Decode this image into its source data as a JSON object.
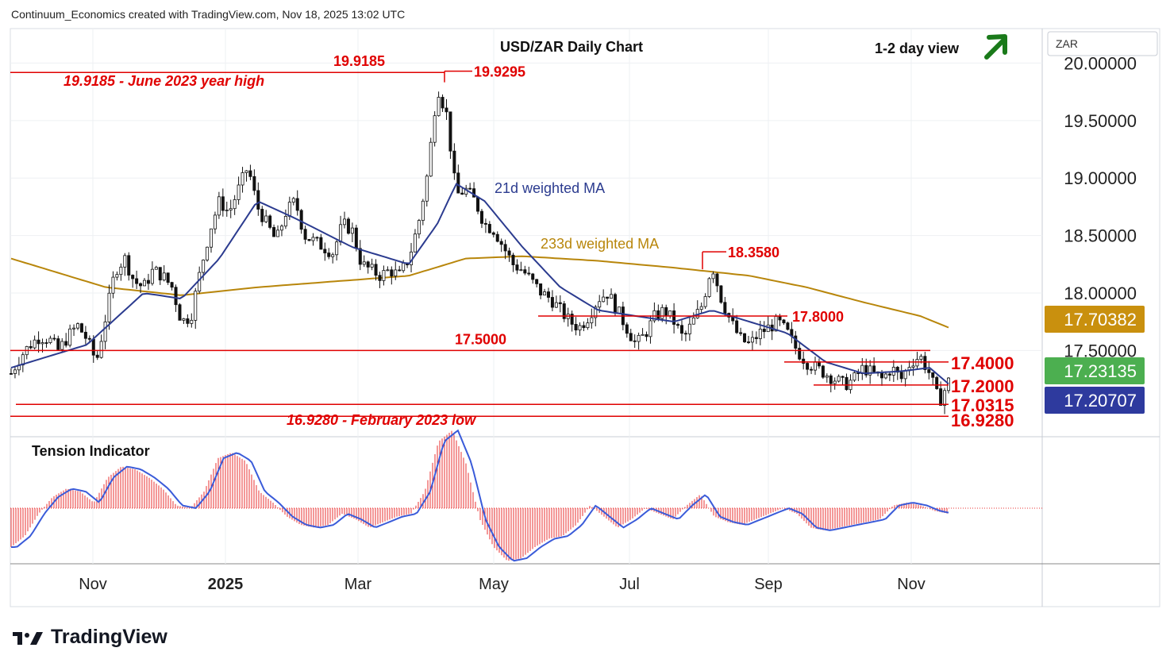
{
  "header": "Continuum_Economics created with TradingView.com, Nov 18, 2025 13:02 UTC",
  "brand": "TradingView",
  "colors": {
    "red": "#e00000",
    "ma21": "#2b3b8f",
    "ma233": "#b8860b",
    "candle": "#111111",
    "tension_red": "#e83030",
    "tension_blue": "#3a5bd9",
    "badge_ma233": "#c9900e",
    "badge_green": "#4caf50",
    "badge_blue": "#2e3a9e",
    "arrow": "#1a7a1a"
  },
  "chart_data": [
    {
      "type": "candlestick",
      "title": "USD/ZAR Daily Chart",
      "subtitle": "1-2 day view",
      "view_arrow": "up-right-arrow",
      "symbol_label": "ZAR",
      "y_ticks": [
        "20.00000",
        "19.50000",
        "19.00000",
        "18.50000",
        "18.00000",
        "17.50000"
      ],
      "y_tick_values": [
        20.0,
        19.5,
        19.0,
        18.5,
        18.0,
        17.5
      ],
      "x_ticks": [
        "Nov",
        "2025",
        "Mar",
        "May",
        "Jul",
        "Sep",
        "Nov"
      ],
      "ylim": [
        16.75,
        20.3
      ],
      "grid": true,
      "price_badges": [
        {
          "label": "17.70382",
          "value": 17.70382,
          "kind": "ma233"
        },
        {
          "label": "17.23135",
          "value": 17.23135,
          "kind": "green"
        },
        {
          "label": "17.20707",
          "value": 17.20707,
          "kind": "blue"
        }
      ],
      "series": [
        {
          "name": "21d weighted MA",
          "kind": "line"
        },
        {
          "name": "233d weighted MA",
          "kind": "line"
        }
      ],
      "levels": [
        {
          "label": "19.9185",
          "value": 19.9185
        },
        {
          "label": "19.9295",
          "value": 19.9295
        },
        {
          "label": "18.3580",
          "value": 18.358
        },
        {
          "label": "17.8000",
          "value": 17.8
        },
        {
          "label": "17.5000",
          "value": 17.5
        },
        {
          "label": "17.4000",
          "value": 17.4
        },
        {
          "label": "17.2000",
          "value": 17.2
        },
        {
          "label": "17.0315",
          "value": 17.0315
        },
        {
          "label": "16.9280",
          "value": 16.928
        }
      ],
      "annotations": [
        "19.9185 - June 2023 year high",
        "16.9280 - February 2023 low"
      ],
      "price_path": [
        [
          0,
          17.3
        ],
        [
          1,
          17.45
        ],
        [
          2,
          17.55
        ],
        [
          3,
          17.62
        ],
        [
          4,
          17.6
        ],
        [
          5,
          17.5
        ],
        [
          6,
          17.62
        ],
        [
          7,
          17.72
        ],
        [
          8,
          17.6
        ],
        [
          9,
          17.4
        ],
        [
          10,
          17.8
        ],
        [
          11,
          18.2
        ],
        [
          12,
          18.3
        ],
        [
          13,
          18.1
        ],
        [
          14,
          18.05
        ],
        [
          15,
          18.2
        ],
        [
          16,
          18.15
        ],
        [
          17,
          18.05
        ],
        [
          18,
          17.75
        ],
        [
          19,
          17.8
        ],
        [
          20,
          18.2
        ],
        [
          21,
          18.55
        ],
        [
          22,
          18.8
        ],
        [
          23,
          18.7
        ],
        [
          24,
          18.9
        ],
        [
          25,
          19.1
        ],
        [
          26,
          18.75
        ],
        [
          27,
          18.6
        ],
        [
          28,
          18.45
        ],
        [
          29,
          18.7
        ],
        [
          30,
          18.8
        ],
        [
          31,
          18.5
        ],
        [
          32,
          18.45
        ],
        [
          33,
          18.4
        ],
        [
          34,
          18.35
        ],
        [
          35,
          18.6
        ],
        [
          36,
          18.55
        ],
        [
          37,
          18.25
        ],
        [
          38,
          18.2
        ],
        [
          39,
          18.15
        ],
        [
          40,
          18.2
        ],
        [
          41,
          18.15
        ],
        [
          42,
          18.3
        ],
        [
          43,
          18.6
        ],
        [
          44,
          19.05
        ],
        [
          45,
          19.8
        ],
        [
          46,
          19.55
        ],
        [
          47,
          18.85
        ],
        [
          48,
          18.9
        ],
        [
          49,
          18.8
        ],
        [
          50,
          18.6
        ],
        [
          51,
          18.55
        ],
        [
          52,
          18.4
        ],
        [
          53,
          18.25
        ],
        [
          54,
          18.2
        ],
        [
          55,
          18.1
        ],
        [
          56,
          18.0
        ],
        [
          57,
          17.95
        ],
        [
          58,
          17.85
        ],
        [
          59,
          17.75
        ],
        [
          60,
          17.7
        ],
        [
          61,
          17.8
        ],
        [
          62,
          17.95
        ],
        [
          63,
          18.0
        ],
        [
          64,
          17.85
        ],
        [
          65,
          17.7
        ],
        [
          66,
          17.55
        ],
        [
          67,
          17.65
        ],
        [
          68,
          17.8
        ],
        [
          69,
          17.85
        ],
        [
          70,
          17.75
        ],
        [
          71,
          17.6
        ],
        [
          72,
          17.75
        ],
        [
          73,
          17.9
        ],
        [
          74,
          18.25
        ],
        [
          75,
          17.95
        ],
        [
          76,
          17.75
        ],
        [
          77,
          17.6
        ],
        [
          78,
          17.55
        ],
        [
          79,
          17.65
        ],
        [
          80,
          17.7
        ],
        [
          81,
          17.75
        ],
        [
          82,
          17.65
        ],
        [
          83,
          17.5
        ],
        [
          84,
          17.4
        ],
        [
          85,
          17.35
        ],
        [
          86,
          17.3
        ],
        [
          87,
          17.25
        ],
        [
          88,
          17.2
        ],
        [
          89,
          17.25
        ],
        [
          90,
          17.35
        ],
        [
          91,
          17.3
        ],
        [
          92,
          17.25
        ],
        [
          93,
          17.35
        ],
        [
          94,
          17.25
        ],
        [
          95,
          17.4
        ],
        [
          96,
          17.45
        ],
        [
          97,
          17.3
        ],
        [
          98,
          17.05
        ],
        [
          99,
          17.23
        ]
      ],
      "ma21_path": [
        [
          0,
          17.35
        ],
        [
          8,
          17.55
        ],
        [
          14,
          18.0
        ],
        [
          18,
          17.95
        ],
        [
          22,
          18.3
        ],
        [
          26,
          18.8
        ],
        [
          30,
          18.65
        ],
        [
          36,
          18.4
        ],
        [
          42,
          18.25
        ],
        [
          45,
          18.6
        ],
        [
          47,
          18.95
        ],
        [
          50,
          18.8
        ],
        [
          54,
          18.4
        ],
        [
          58,
          18.05
        ],
        [
          62,
          17.85
        ],
        [
          66,
          17.8
        ],
        [
          70,
          17.75
        ],
        [
          74,
          17.85
        ],
        [
          78,
          17.75
        ],
        [
          82,
          17.65
        ],
        [
          86,
          17.4
        ],
        [
          90,
          17.3
        ],
        [
          94,
          17.32
        ],
        [
          97,
          17.35
        ],
        [
          99,
          17.21
        ]
      ],
      "ma233_path": [
        [
          0,
          18.3
        ],
        [
          10,
          18.05
        ],
        [
          18,
          17.98
        ],
        [
          26,
          18.05
        ],
        [
          34,
          18.1
        ],
        [
          42,
          18.15
        ],
        [
          48,
          18.3
        ],
        [
          54,
          18.32
        ],
        [
          62,
          18.28
        ],
        [
          70,
          18.22
        ],
        [
          78,
          18.15
        ],
        [
          84,
          18.05
        ],
        [
          90,
          17.92
        ],
        [
          96,
          17.8
        ],
        [
          99,
          17.7
        ]
      ],
      "tension_indicator": {
        "name": "Tension Indicator",
        "values": [
          -0.7,
          -0.5,
          -0.1,
          0.2,
          0.35,
          0.3,
          0.1,
          0.55,
          0.75,
          0.7,
          0.55,
          0.35,
          0.05,
          0.0,
          0.3,
          0.9,
          1.0,
          0.85,
          0.3,
          0.1,
          -0.15,
          -0.3,
          -0.35,
          -0.3,
          -0.1,
          -0.2,
          -0.35,
          -0.25,
          -0.15,
          -0.1,
          0.3,
          1.2,
          1.4,
          0.8,
          -0.2,
          -0.7,
          -0.95,
          -0.9,
          -0.7,
          -0.55,
          -0.5,
          -0.3,
          0.05,
          -0.15,
          -0.35,
          -0.2,
          0.0,
          -0.1,
          -0.2,
          0.05,
          0.25,
          -0.15,
          -0.25,
          -0.3,
          -0.2,
          -0.1,
          0.0,
          -0.1,
          -0.35,
          -0.4,
          -0.35,
          -0.3,
          -0.25,
          -0.2,
          0.05,
          0.1,
          0.05,
          -0.05,
          -0.1
        ]
      }
    }
  ]
}
